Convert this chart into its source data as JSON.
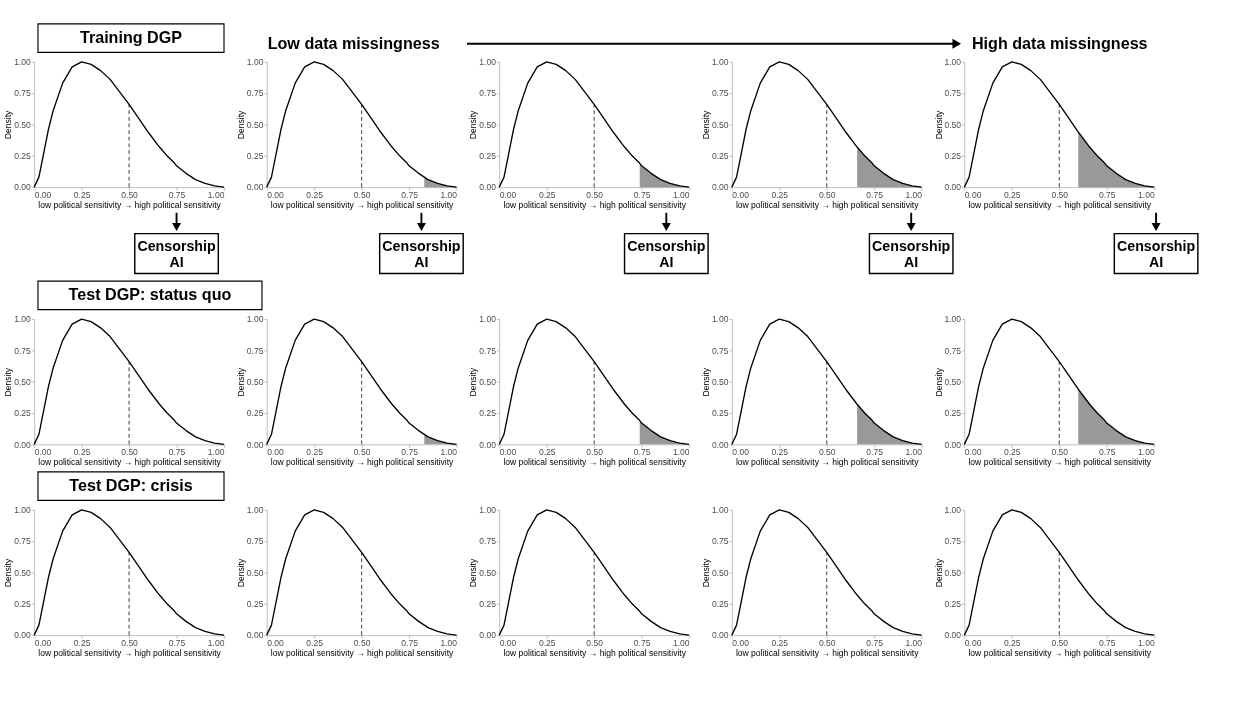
{
  "chart_data": [
    {
      "type": "line",
      "xlabel": "low political sensitivity → high political sensitivity",
      "ylabel": "Density",
      "annotations": [
        "Training DGP",
        "Low data missingness",
        "High data missingness",
        "Censorship AI"
      ],
      "xlim": [
        0,
        1
      ],
      "ylim": [
        0,
        1
      ],
      "xticks": [
        {
          "value": 0,
          "label": "0.00"
        },
        {
          "value": 0.25,
          "label": "0.25"
        },
        {
          "value": 0.5,
          "label": "0.50"
        },
        {
          "value": 0.75,
          "label": "0.75"
        },
        {
          "value": 1,
          "label": "1.00"
        }
      ],
      "yticks": [
        {
          "value": 0,
          "label": "0.00"
        },
        {
          "value": 0.25,
          "label": "0.25"
        },
        {
          "value": 0.5,
          "label": "0.50"
        },
        {
          "value": 0.75,
          "label": "0.75"
        },
        {
          "value": 1,
          "label": "1.00"
        }
      ],
      "ref_lines": [
        {
          "axis": "x",
          "value": 0.5,
          "line_style": "dashed"
        }
      ],
      "series": [
        {
          "color": "#000000",
          "x": [
            0,
            0.025,
            0.05,
            0.075,
            0.1,
            0.15,
            0.2,
            0.25,
            0.3,
            0.35,
            0.4,
            0.45,
            0.5,
            0.55,
            0.6,
            0.65,
            0.66,
            0.7,
            0.74,
            0.75,
            0.8,
            0.83,
            0.85,
            0.9,
            0.95,
            1
          ],
          "values": [
            0,
            0.08,
            0.27,
            0.46,
            0.61,
            0.83,
            0.96,
            1,
            0.98,
            0.93,
            0.86,
            0.76,
            0.66,
            0.55,
            0.44,
            0.34,
            0.32,
            0.25,
            0.19,
            0.17,
            0.11,
            0.08,
            0.06,
            0.03,
            0.01,
            0
          ]
        }
      ]
    },
    {
      "type": "line",
      "xlabel": "low political sensitivity → high political sensitivity",
      "ylabel": "Density",
      "annotations": [
        "Censorship AI"
      ],
      "xlim": [
        0,
        1
      ],
      "ylim": [
        0,
        1
      ],
      "xticks": [
        {
          "value": 0,
          "label": "0.00"
        },
        {
          "value": 0.25,
          "label": "0.25"
        },
        {
          "value": 0.5,
          "label": "0.50"
        },
        {
          "value": 0.75,
          "label": "0.75"
        },
        {
          "value": 1,
          "label": "1.00"
        }
      ],
      "yticks": [
        {
          "value": 0,
          "label": "0.00"
        },
        {
          "value": 0.25,
          "label": "0.25"
        },
        {
          "value": 0.5,
          "label": "0.50"
        },
        {
          "value": 0.75,
          "label": "0.75"
        },
        {
          "value": 1,
          "label": "1.00"
        }
      ],
      "ref_lines": [
        {
          "axis": "x",
          "value": 0.5,
          "line_style": "dashed"
        }
      ],
      "series": [
        {
          "color": "#000000",
          "x": [
            0,
            0.025,
            0.05,
            0.075,
            0.1,
            0.15,
            0.2,
            0.25,
            0.3,
            0.35,
            0.4,
            0.45,
            0.5,
            0.55,
            0.6,
            0.65,
            0.66,
            0.7,
            0.74,
            0.75,
            0.8,
            0.83,
            0.85,
            0.9,
            0.95,
            1
          ],
          "values": [
            0,
            0.08,
            0.27,
            0.46,
            0.61,
            0.83,
            0.96,
            1,
            0.98,
            0.93,
            0.86,
            0.76,
            0.66,
            0.55,
            0.44,
            0.34,
            0.32,
            0.25,
            0.19,
            0.17,
            0.11,
            0.08,
            0.06,
            0.03,
            0.01,
            0
          ]
        },
        {
          "type": "area",
          "color": "#999999",
          "x": [
            0.83,
            0.85,
            0.9,
            0.95,
            1
          ],
          "values": [
            0.08,
            0.06,
            0.03,
            0.01,
            0
          ]
        }
      ]
    },
    {
      "type": "line",
      "xlabel": "low political sensitivity → high political sensitivity",
      "ylabel": "Density",
      "annotations": [
        "Censorship AI"
      ],
      "xlim": [
        0,
        1
      ],
      "ylim": [
        0,
        1
      ],
      "xticks": [
        {
          "value": 0,
          "label": "0.00"
        },
        {
          "value": 0.25,
          "label": "0.25"
        },
        {
          "value": 0.5,
          "label": "0.50"
        },
        {
          "value": 0.75,
          "label": "0.75"
        },
        {
          "value": 1,
          "label": "1.00"
        }
      ],
      "yticks": [
        {
          "value": 0,
          "label": "0.00"
        },
        {
          "value": 0.25,
          "label": "0.25"
        },
        {
          "value": 0.5,
          "label": "0.50"
        },
        {
          "value": 0.75,
          "label": "0.75"
        },
        {
          "value": 1,
          "label": "1.00"
        }
      ],
      "ref_lines": [
        {
          "axis": "x",
          "value": 0.5,
          "line_style": "dashed"
        }
      ],
      "series": [
        {
          "color": "#000000",
          "x": [
            0,
            0.025,
            0.05,
            0.075,
            0.1,
            0.15,
            0.2,
            0.25,
            0.3,
            0.35,
            0.4,
            0.45,
            0.5,
            0.55,
            0.6,
            0.65,
            0.66,
            0.7,
            0.74,
            0.75,
            0.8,
            0.83,
            0.85,
            0.9,
            0.95,
            1
          ],
          "values": [
            0,
            0.08,
            0.27,
            0.46,
            0.61,
            0.83,
            0.96,
            1,
            0.98,
            0.93,
            0.86,
            0.76,
            0.66,
            0.55,
            0.44,
            0.34,
            0.32,
            0.25,
            0.19,
            0.17,
            0.11,
            0.08,
            0.06,
            0.03,
            0.01,
            0
          ]
        },
        {
          "type": "area",
          "color": "#999999",
          "x": [
            0.74,
            0.75,
            0.8,
            0.85,
            0.9,
            0.95,
            1
          ],
          "values": [
            0.19,
            0.17,
            0.11,
            0.06,
            0.03,
            0.01,
            0
          ]
        }
      ]
    },
    {
      "type": "line",
      "xlabel": "low political sensitivity → high political sensitivity",
      "ylabel": "Density",
      "annotations": [
        "Censorship AI"
      ],
      "xlim": [
        0,
        1
      ],
      "ylim": [
        0,
        1
      ],
      "xticks": [
        {
          "value": 0,
          "label": "0.00"
        },
        {
          "value": 0.25,
          "label": "0.25"
        },
        {
          "value": 0.5,
          "label": "0.50"
        },
        {
          "value": 0.75,
          "label": "0.75"
        },
        {
          "value": 1,
          "label": "1.00"
        }
      ],
      "yticks": [
        {
          "value": 0,
          "label": "0.00"
        },
        {
          "value": 0.25,
          "label": "0.25"
        },
        {
          "value": 0.5,
          "label": "0.50"
        },
        {
          "value": 0.75,
          "label": "0.75"
        },
        {
          "value": 1,
          "label": "1.00"
        }
      ],
      "ref_lines": [
        {
          "axis": "x",
          "value": 0.5,
          "line_style": "dashed"
        }
      ],
      "series": [
        {
          "color": "#000000",
          "x": [
            0,
            0.025,
            0.05,
            0.075,
            0.1,
            0.15,
            0.2,
            0.25,
            0.3,
            0.35,
            0.4,
            0.45,
            0.5,
            0.55,
            0.6,
            0.65,
            0.66,
            0.7,
            0.74,
            0.75,
            0.8,
            0.83,
            0.85,
            0.9,
            0.95,
            1
          ],
          "values": [
            0,
            0.08,
            0.27,
            0.46,
            0.61,
            0.83,
            0.96,
            1,
            0.98,
            0.93,
            0.86,
            0.76,
            0.66,
            0.55,
            0.44,
            0.34,
            0.32,
            0.25,
            0.19,
            0.17,
            0.11,
            0.08,
            0.06,
            0.03,
            0.01,
            0
          ]
        },
        {
          "type": "area",
          "color": "#999999",
          "x": [
            0.66,
            0.7,
            0.75,
            0.8,
            0.85,
            0.9,
            0.95,
            1
          ],
          "values": [
            0.32,
            0.25,
            0.17,
            0.11,
            0.06,
            0.03,
            0.01,
            0
          ]
        }
      ]
    },
    {
      "type": "line",
      "xlabel": "low political sensitivity → high political sensitivity",
      "ylabel": "Density",
      "annotations": [
        "Censorship AI"
      ],
      "xlim": [
        0,
        1
      ],
      "ylim": [
        0,
        1
      ],
      "xticks": [
        {
          "value": 0,
          "label": "0.00"
        },
        {
          "value": 0.25,
          "label": "0.25"
        },
        {
          "value": 0.5,
          "label": "0.50"
        },
        {
          "value": 0.75,
          "label": "0.75"
        },
        {
          "value": 1,
          "label": "1.00"
        }
      ],
      "yticks": [
        {
          "value": 0,
          "label": "0.00"
        },
        {
          "value": 0.25,
          "label": "0.25"
        },
        {
          "value": 0.5,
          "label": "0.50"
        },
        {
          "value": 0.75,
          "label": "0.75"
        },
        {
          "value": 1,
          "label": "1.00"
        }
      ],
      "ref_lines": [
        {
          "axis": "x",
          "value": 0.5,
          "line_style": "dashed"
        }
      ],
      "series": [
        {
          "color": "#000000",
          "x": [
            0,
            0.025,
            0.05,
            0.075,
            0.1,
            0.15,
            0.2,
            0.25,
            0.3,
            0.35,
            0.4,
            0.45,
            0.5,
            0.55,
            0.6,
            0.65,
            0.66,
            0.7,
            0.74,
            0.75,
            0.8,
            0.83,
            0.85,
            0.9,
            0.95,
            1
          ],
          "values": [
            0,
            0.08,
            0.27,
            0.46,
            0.61,
            0.83,
            0.96,
            1,
            0.98,
            0.93,
            0.86,
            0.76,
            0.66,
            0.55,
            0.44,
            0.34,
            0.32,
            0.25,
            0.19,
            0.17,
            0.11,
            0.08,
            0.06,
            0.03,
            0.01,
            0
          ]
        },
        {
          "type": "area",
          "color": "#999999",
          "x": [
            0.6,
            0.65,
            0.7,
            0.75,
            0.8,
            0.85,
            0.9,
            0.95,
            1
          ],
          "values": [
            0.44,
            0.34,
            0.25,
            0.17,
            0.11,
            0.06,
            0.03,
            0.01,
            0
          ]
        }
      ]
    },
    {
      "type": "line",
      "xlabel": "low political sensitivity → high political sensitivity",
      "ylabel": "Density",
      "annotations": [
        "Test DGP: status quo"
      ],
      "xlim": [
        0,
        1
      ],
      "ylim": [
        0,
        1
      ],
      "xticks": [
        {
          "value": 0,
          "label": "0.00"
        },
        {
          "value": 0.25,
          "label": "0.25"
        },
        {
          "value": 0.5,
          "label": "0.50"
        },
        {
          "value": 0.75,
          "label": "0.75"
        },
        {
          "value": 1,
          "label": "1.00"
        }
      ],
      "yticks": [
        {
          "value": 0,
          "label": "0.00"
        },
        {
          "value": 0.25,
          "label": "0.25"
        },
        {
          "value": 0.5,
          "label": "0.50"
        },
        {
          "value": 0.75,
          "label": "0.75"
        },
        {
          "value": 1,
          "label": "1.00"
        }
      ],
      "ref_lines": [
        {
          "axis": "x",
          "value": 0.5,
          "line_style": "dashed"
        }
      ],
      "series": [
        {
          "color": "#000000",
          "x": [
            0,
            0.025,
            0.05,
            0.075,
            0.1,
            0.15,
            0.2,
            0.25,
            0.3,
            0.35,
            0.4,
            0.45,
            0.5,
            0.55,
            0.6,
            0.65,
            0.66,
            0.7,
            0.74,
            0.75,
            0.8,
            0.83,
            0.85,
            0.9,
            0.95,
            1
          ],
          "values": [
            0,
            0.08,
            0.27,
            0.46,
            0.61,
            0.83,
            0.96,
            1,
            0.98,
            0.93,
            0.86,
            0.76,
            0.66,
            0.55,
            0.44,
            0.34,
            0.32,
            0.25,
            0.19,
            0.17,
            0.11,
            0.08,
            0.06,
            0.03,
            0.01,
            0
          ]
        }
      ]
    },
    {
      "type": "line",
      "xlabel": "low political sensitivity → high political sensitivity",
      "ylabel": "Density",
      "xlim": [
        0,
        1
      ],
      "ylim": [
        0,
        1
      ],
      "xticks": [
        {
          "value": 0,
          "label": "0.00"
        },
        {
          "value": 0.25,
          "label": "0.25"
        },
        {
          "value": 0.5,
          "label": "0.50"
        },
        {
          "value": 0.75,
          "label": "0.75"
        },
        {
          "value": 1,
          "label": "1.00"
        }
      ],
      "yticks": [
        {
          "value": 0,
          "label": "0.00"
        },
        {
          "value": 0.25,
          "label": "0.25"
        },
        {
          "value": 0.5,
          "label": "0.50"
        },
        {
          "value": 0.75,
          "label": "0.75"
        },
        {
          "value": 1,
          "label": "1.00"
        }
      ],
      "ref_lines": [
        {
          "axis": "x",
          "value": 0.5,
          "line_style": "dashed"
        }
      ],
      "series": [
        {
          "color": "#000000",
          "x": [
            0,
            0.025,
            0.05,
            0.075,
            0.1,
            0.15,
            0.2,
            0.25,
            0.3,
            0.35,
            0.4,
            0.45,
            0.5,
            0.55,
            0.6,
            0.65,
            0.66,
            0.7,
            0.74,
            0.75,
            0.8,
            0.83,
            0.85,
            0.9,
            0.95,
            1
          ],
          "values": [
            0,
            0.08,
            0.27,
            0.46,
            0.61,
            0.83,
            0.96,
            1,
            0.98,
            0.93,
            0.86,
            0.76,
            0.66,
            0.55,
            0.44,
            0.34,
            0.32,
            0.25,
            0.19,
            0.17,
            0.11,
            0.08,
            0.06,
            0.03,
            0.01,
            0
          ]
        },
        {
          "type": "area",
          "color": "#999999",
          "x": [
            0.83,
            0.85,
            0.9,
            0.95,
            1
          ],
          "values": [
            0.08,
            0.06,
            0.03,
            0.01,
            0
          ]
        }
      ]
    },
    {
      "type": "line",
      "xlabel": "low political sensitivity → high political sensitivity",
      "ylabel": "Density",
      "xlim": [
        0,
        1
      ],
      "ylim": [
        0,
        1
      ],
      "xticks": [
        {
          "value": 0,
          "label": "0.00"
        },
        {
          "value": 0.25,
          "label": "0.25"
        },
        {
          "value": 0.5,
          "label": "0.50"
        },
        {
          "value": 0.75,
          "label": "0.75"
        },
        {
          "value": 1,
          "label": "1.00"
        }
      ],
      "yticks": [
        {
          "value": 0,
          "label": "0.00"
        },
        {
          "value": 0.25,
          "label": "0.25"
        },
        {
          "value": 0.5,
          "label": "0.50"
        },
        {
          "value": 0.75,
          "label": "0.75"
        },
        {
          "value": 1,
          "label": "1.00"
        }
      ],
      "ref_lines": [
        {
          "axis": "x",
          "value": 0.5,
          "line_style": "dashed"
        }
      ],
      "series": [
        {
          "color": "#000000",
          "x": [
            0,
            0.025,
            0.05,
            0.075,
            0.1,
            0.15,
            0.2,
            0.25,
            0.3,
            0.35,
            0.4,
            0.45,
            0.5,
            0.55,
            0.6,
            0.65,
            0.66,
            0.7,
            0.74,
            0.75,
            0.8,
            0.83,
            0.85,
            0.9,
            0.95,
            1
          ],
          "values": [
            0,
            0.08,
            0.27,
            0.46,
            0.61,
            0.83,
            0.96,
            1,
            0.98,
            0.93,
            0.86,
            0.76,
            0.66,
            0.55,
            0.44,
            0.34,
            0.32,
            0.25,
            0.19,
            0.17,
            0.11,
            0.08,
            0.06,
            0.03,
            0.01,
            0
          ]
        },
        {
          "type": "area",
          "color": "#999999",
          "x": [
            0.74,
            0.75,
            0.8,
            0.85,
            0.9,
            0.95,
            1
          ],
          "values": [
            0.19,
            0.17,
            0.11,
            0.06,
            0.03,
            0.01,
            0
          ]
        }
      ]
    },
    {
      "type": "line",
      "xlabel": "low political sensitivity → high political sensitivity",
      "ylabel": "Density",
      "xlim": [
        0,
        1
      ],
      "ylim": [
        0,
        1
      ],
      "xticks": [
        {
          "value": 0,
          "label": "0.00"
        },
        {
          "value": 0.25,
          "label": "0.25"
        },
        {
          "value": 0.5,
          "label": "0.50"
        },
        {
          "value": 0.75,
          "label": "0.75"
        },
        {
          "value": 1,
          "label": "1.00"
        }
      ],
      "yticks": [
        {
          "value": 0,
          "label": "0.00"
        },
        {
          "value": 0.25,
          "label": "0.25"
        },
        {
          "value": 0.5,
          "label": "0.50"
        },
        {
          "value": 0.75,
          "label": "0.75"
        },
        {
          "value": 1,
          "label": "1.00"
        }
      ],
      "ref_lines": [
        {
          "axis": "x",
          "value": 0.5,
          "line_style": "dashed"
        }
      ],
      "series": [
        {
          "color": "#000000",
          "x": [
            0,
            0.025,
            0.05,
            0.075,
            0.1,
            0.15,
            0.2,
            0.25,
            0.3,
            0.35,
            0.4,
            0.45,
            0.5,
            0.55,
            0.6,
            0.65,
            0.66,
            0.7,
            0.74,
            0.75,
            0.8,
            0.83,
            0.85,
            0.9,
            0.95,
            1
          ],
          "values": [
            0,
            0.08,
            0.27,
            0.46,
            0.61,
            0.83,
            0.96,
            1,
            0.98,
            0.93,
            0.86,
            0.76,
            0.66,
            0.55,
            0.44,
            0.34,
            0.32,
            0.25,
            0.19,
            0.17,
            0.11,
            0.08,
            0.06,
            0.03,
            0.01,
            0
          ]
        },
        {
          "type": "area",
          "color": "#999999",
          "x": [
            0.66,
            0.7,
            0.75,
            0.8,
            0.85,
            0.9,
            0.95,
            1
          ],
          "values": [
            0.32,
            0.25,
            0.17,
            0.11,
            0.06,
            0.03,
            0.01,
            0
          ]
        }
      ]
    },
    {
      "type": "line",
      "xlabel": "low political sensitivity → high political sensitivity",
      "ylabel": "Density",
      "xlim": [
        0,
        1
      ],
      "ylim": [
        0,
        1
      ],
      "xticks": [
        {
          "value": 0,
          "label": "0.00"
        },
        {
          "value": 0.25,
          "label": "0.25"
        },
        {
          "value": 0.5,
          "label": "0.50"
        },
        {
          "value": 0.75,
          "label": "0.75"
        },
        {
          "value": 1,
          "label": "1.00"
        }
      ],
      "yticks": [
        {
          "value": 0,
          "label": "0.00"
        },
        {
          "value": 0.25,
          "label": "0.25"
        },
        {
          "value": 0.5,
          "label": "0.50"
        },
        {
          "value": 0.75,
          "label": "0.75"
        },
        {
          "value": 1,
          "label": "1.00"
        }
      ],
      "ref_lines": [
        {
          "axis": "x",
          "value": 0.5,
          "line_style": "dashed"
        }
      ],
      "series": [
        {
          "color": "#000000",
          "x": [
            0,
            0.025,
            0.05,
            0.075,
            0.1,
            0.15,
            0.2,
            0.25,
            0.3,
            0.35,
            0.4,
            0.45,
            0.5,
            0.55,
            0.6,
            0.65,
            0.66,
            0.7,
            0.74,
            0.75,
            0.8,
            0.83,
            0.85,
            0.9,
            0.95,
            1
          ],
          "values": [
            0,
            0.08,
            0.27,
            0.46,
            0.61,
            0.83,
            0.96,
            1,
            0.98,
            0.93,
            0.86,
            0.76,
            0.66,
            0.55,
            0.44,
            0.34,
            0.32,
            0.25,
            0.19,
            0.17,
            0.11,
            0.08,
            0.06,
            0.03,
            0.01,
            0
          ]
        },
        {
          "type": "area",
          "color": "#999999",
          "x": [
            0.6,
            0.65,
            0.7,
            0.75,
            0.8,
            0.85,
            0.9,
            0.95,
            1
          ],
          "values": [
            0.44,
            0.34,
            0.25,
            0.17,
            0.11,
            0.06,
            0.03,
            0.01,
            0
          ]
        }
      ]
    },
    {
      "type": "line",
      "xlabel": "low political sensitivity → high political sensitivity",
      "ylabel": "Density",
      "annotations": [
        "Test DGP: crisis"
      ],
      "xlim": [
        0,
        1
      ],
      "ylim": [
        0,
        1
      ],
      "xticks": [
        {
          "value": 0,
          "label": "0.00"
        },
        {
          "value": 0.25,
          "label": "0.25"
        },
        {
          "value": 0.5,
          "label": "0.50"
        },
        {
          "value": 0.75,
          "label": "0.75"
        },
        {
          "value": 1,
          "label": "1.00"
        }
      ],
      "yticks": [
        {
          "value": 0,
          "label": "0.00"
        },
        {
          "value": 0.25,
          "label": "0.25"
        },
        {
          "value": 0.5,
          "label": "0.50"
        },
        {
          "value": 0.75,
          "label": "0.75"
        },
        {
          "value": 1,
          "label": "1.00"
        }
      ],
      "ref_lines": [
        {
          "axis": "x",
          "value": 0.5,
          "line_style": "dashed"
        }
      ],
      "series": [
        {
          "color": "#000000",
          "x": [
            0,
            0.025,
            0.05,
            0.075,
            0.1,
            0.15,
            0.2,
            0.25,
            0.3,
            0.35,
            0.4,
            0.45,
            0.5,
            0.55,
            0.6,
            0.65,
            0.66,
            0.7,
            0.74,
            0.75,
            0.8,
            0.83,
            0.85,
            0.9,
            0.95,
            1
          ],
          "values": [
            0,
            0.08,
            0.27,
            0.46,
            0.61,
            0.83,
            0.96,
            1,
            0.98,
            0.93,
            0.86,
            0.76,
            0.66,
            0.55,
            0.44,
            0.34,
            0.32,
            0.25,
            0.19,
            0.17,
            0.11,
            0.08,
            0.06,
            0.03,
            0.01,
            0
          ]
        }
      ]
    },
    {
      "type": "line",
      "xlabel": "low political sensitivity → high political sensitivity",
      "ylabel": "Density",
      "xlim": [
        0,
        1
      ],
      "ylim": [
        0,
        1
      ],
      "xticks": [
        {
          "value": 0,
          "label": "0.00"
        },
        {
          "value": 0.25,
          "label": "0.25"
        },
        {
          "value": 0.5,
          "label": "0.50"
        },
        {
          "value": 0.75,
          "label": "0.75"
        },
        {
          "value": 1,
          "label": "1.00"
        }
      ],
      "yticks": [
        {
          "value": 0,
          "label": "0.00"
        },
        {
          "value": 0.25,
          "label": "0.25"
        },
        {
          "value": 0.5,
          "label": "0.50"
        },
        {
          "value": 0.75,
          "label": "0.75"
        },
        {
          "value": 1,
          "label": "1.00"
        }
      ],
      "ref_lines": [
        {
          "axis": "x",
          "value": 0.5,
          "line_style": "dashed"
        }
      ],
      "series": [
        {
          "color": "#000000",
          "x": [
            0,
            0.025,
            0.05,
            0.075,
            0.1,
            0.15,
            0.2,
            0.25,
            0.3,
            0.35,
            0.4,
            0.45,
            0.5,
            0.55,
            0.6,
            0.65,
            0.66,
            0.7,
            0.74,
            0.75,
            0.8,
            0.83,
            0.85,
            0.9,
            0.95,
            1
          ],
          "values": [
            0,
            0.08,
            0.27,
            0.46,
            0.61,
            0.83,
            0.96,
            1,
            0.98,
            0.93,
            0.86,
            0.76,
            0.66,
            0.55,
            0.44,
            0.34,
            0.32,
            0.25,
            0.19,
            0.17,
            0.11,
            0.08,
            0.06,
            0.03,
            0.01,
            0
          ]
        }
      ]
    },
    {
      "type": "line",
      "xlabel": "low political sensitivity → high political sensitivity",
      "ylabel": "Density",
      "xlim": [
        0,
        1
      ],
      "ylim": [
        0,
        1
      ],
      "xticks": [
        {
          "value": 0,
          "label": "0.00"
        },
        {
          "value": 0.25,
          "label": "0.25"
        },
        {
          "value": 0.5,
          "label": "0.50"
        },
        {
          "value": 0.75,
          "label": "0.75"
        },
        {
          "value": 1,
          "label": "1.00"
        }
      ],
      "yticks": [
        {
          "value": 0,
          "label": "0.00"
        },
        {
          "value": 0.25,
          "label": "0.25"
        },
        {
          "value": 0.5,
          "label": "0.50"
        },
        {
          "value": 0.75,
          "label": "0.75"
        },
        {
          "value": 1,
          "label": "1.00"
        }
      ],
      "ref_lines": [
        {
          "axis": "x",
          "value": 0.5,
          "line_style": "dashed"
        }
      ],
      "series": [
        {
          "color": "#000000",
          "x": [
            0,
            0.025,
            0.05,
            0.075,
            0.1,
            0.15,
            0.2,
            0.25,
            0.3,
            0.35,
            0.4,
            0.45,
            0.5,
            0.55,
            0.6,
            0.65,
            0.66,
            0.7,
            0.74,
            0.75,
            0.8,
            0.83,
            0.85,
            0.9,
            0.95,
            1
          ],
          "values": [
            0,
            0.08,
            0.27,
            0.46,
            0.61,
            0.83,
            0.96,
            1,
            0.98,
            0.93,
            0.86,
            0.76,
            0.66,
            0.55,
            0.44,
            0.34,
            0.32,
            0.25,
            0.19,
            0.17,
            0.11,
            0.08,
            0.06,
            0.03,
            0.01,
            0
          ]
        }
      ]
    },
    {
      "type": "line",
      "xlabel": "low political sensitivity → high political sensitivity",
      "ylabel": "Density",
      "xlim": [
        0,
        1
      ],
      "ylim": [
        0,
        1
      ],
      "xticks": [
        {
          "value": 0,
          "label": "0.00"
        },
        {
          "value": 0.25,
          "label": "0.25"
        },
        {
          "value": 0.5,
          "label": "0.50"
        },
        {
          "value": 0.75,
          "label": "0.75"
        },
        {
          "value": 1,
          "label": "1.00"
        }
      ],
      "yticks": [
        {
          "value": 0,
          "label": "0.00"
        },
        {
          "value": 0.25,
          "label": "0.25"
        },
        {
          "value": 0.5,
          "label": "0.50"
        },
        {
          "value": 0.75,
          "label": "0.75"
        },
        {
          "value": 1,
          "label": "1.00"
        }
      ],
      "ref_lines": [
        {
          "axis": "x",
          "value": 0.5,
          "line_style": "dashed"
        }
      ],
      "series": [
        {
          "color": "#000000",
          "x": [
            0,
            0.025,
            0.05,
            0.075,
            0.1,
            0.15,
            0.2,
            0.25,
            0.3,
            0.35,
            0.4,
            0.45,
            0.5,
            0.55,
            0.6,
            0.65,
            0.66,
            0.7,
            0.74,
            0.75,
            0.8,
            0.83,
            0.85,
            0.9,
            0.95,
            1
          ],
          "values": [
            0,
            0.08,
            0.27,
            0.46,
            0.61,
            0.83,
            0.96,
            1,
            0.98,
            0.93,
            0.86,
            0.76,
            0.66,
            0.55,
            0.44,
            0.34,
            0.32,
            0.25,
            0.19,
            0.17,
            0.11,
            0.08,
            0.06,
            0.03,
            0.01,
            0
          ]
        }
      ]
    },
    {
      "type": "line",
      "xlabel": "low political sensitivity → high political sensitivity",
      "ylabel": "Density",
      "xlim": [
        0,
        1
      ],
      "ylim": [
        0,
        1
      ],
      "xticks": [
        {
          "value": 0,
          "label": "0.00"
        },
        {
          "value": 0.25,
          "label": "0.25"
        },
        {
          "value": 0.5,
          "label": "0.50"
        },
        {
          "value": 0.75,
          "label": "0.75"
        },
        {
          "value": 1,
          "label": "1.00"
        }
      ],
      "yticks": [
        {
          "value": 0,
          "label": "0.00"
        },
        {
          "value": 0.25,
          "label": "0.25"
        },
        {
          "value": 0.5,
          "label": "0.50"
        },
        {
          "value": 0.75,
          "label": "0.75"
        },
        {
          "value": 1,
          "label": "1.00"
        }
      ],
      "ref_lines": [
        {
          "axis": "x",
          "value": 0.5,
          "line_style": "dashed"
        }
      ],
      "series": [
        {
          "color": "#000000",
          "x": [
            0,
            0.025,
            0.05,
            0.075,
            0.1,
            0.15,
            0.2,
            0.25,
            0.3,
            0.35,
            0.4,
            0.45,
            0.5,
            0.55,
            0.6,
            0.65,
            0.66,
            0.7,
            0.74,
            0.75,
            0.8,
            0.83,
            0.85,
            0.9,
            0.95,
            1
          ],
          "values": [
            0,
            0.08,
            0.27,
            0.46,
            0.61,
            0.83,
            0.96,
            1,
            0.98,
            0.93,
            0.86,
            0.76,
            0.66,
            0.55,
            0.44,
            0.34,
            0.32,
            0.25,
            0.19,
            0.17,
            0.11,
            0.08,
            0.06,
            0.03,
            0.01,
            0
          ]
        }
      ]
    }
  ]
}
